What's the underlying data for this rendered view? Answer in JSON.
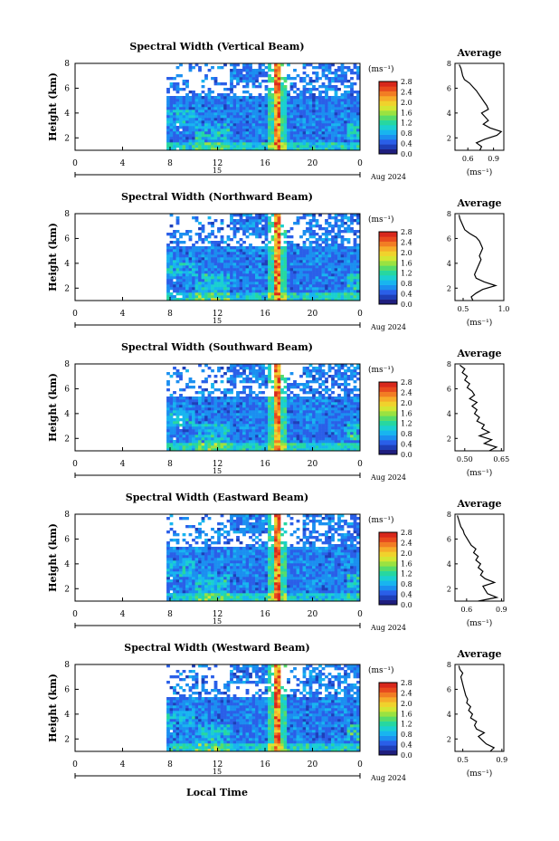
{
  "figure": {
    "xlabel": "Local Time",
    "date_day": "15",
    "date_label": "Aug 2024",
    "unit": "(ms⁻¹)",
    "avg_title": "Average",
    "avg_xlabel": "(ms⁻¹)"
  },
  "colorbar": {
    "colors": [
      "#1f1e7e",
      "#1e3fb8",
      "#2a5fe8",
      "#1b8ff0",
      "#18b5ef",
      "#1bd0d0",
      "#27d7a0",
      "#57dc6a",
      "#9ae241",
      "#d4e632",
      "#f0d22c",
      "#f6ad2a",
      "#f27d24",
      "#e84a1e",
      "#d8281c"
    ],
    "ticks": [
      "0.0",
      "0.4",
      "0.8",
      "1.2",
      "1.6",
      "2.0",
      "2.4",
      "2.8"
    ]
  },
  "chart_data": [
    {
      "type": "heatmap",
      "title": "Spectral Width (Vertical Beam)",
      "xlabel": "Local Time",
      "ylabel": "Height (km)",
      "xlim": [
        0,
        24
      ],
      "ylim": [
        1,
        8
      ],
      "xticks": [
        "0",
        "4",
        "8",
        "12",
        "16",
        "20",
        "0"
      ],
      "yticks": [
        "2",
        "4",
        "6",
        "8"
      ],
      "data_start_hour": 7.7,
      "colorbar_label": "(ms⁻¹)",
      "colorbar_range": [
        0.0,
        2.8
      ],
      "average": {
        "title": "Average",
        "xlabel": "(ms⁻¹)",
        "xticks": [
          "0.6",
          "0.9"
        ],
        "yticks": [
          "2",
          "4",
          "6",
          "8"
        ],
        "xlim": [
          0.45,
          1.02
        ],
        "heights": [
          1.0,
          1.3,
          1.6,
          1.9,
          2.2,
          2.5,
          2.8,
          3.1,
          3.4,
          3.7,
          4.0,
          4.3,
          4.6,
          4.9,
          5.2,
          5.5,
          5.8,
          6.1,
          6.4,
          6.7,
          7.0,
          7.3,
          7.6,
          7.9
        ],
        "values": [
          0.74,
          0.76,
          0.7,
          0.8,
          0.94,
          0.99,
          0.86,
          0.78,
          0.84,
          0.8,
          0.76,
          0.84,
          0.82,
          0.79,
          0.76,
          0.73,
          0.7,
          0.66,
          0.62,
          0.56,
          0.54,
          0.53,
          0.52,
          0.5
        ]
      }
    },
    {
      "type": "heatmap",
      "title": "Spectral Width (Northward Beam)",
      "xlabel": "Local Time",
      "ylabel": "Height (km)",
      "xlim": [
        0,
        24
      ],
      "ylim": [
        1,
        8
      ],
      "xticks": [
        "0",
        "4",
        "8",
        "12",
        "16",
        "20",
        "0"
      ],
      "yticks": [
        "2",
        "4",
        "6",
        "8"
      ],
      "data_start_hour": 7.7,
      "colorbar_label": "(ms⁻¹)",
      "colorbar_range": [
        0.0,
        2.8
      ],
      "average": {
        "title": "Average",
        "xlabel": "(ms⁻¹)",
        "xticks": [
          "0.5",
          "1.0"
        ],
        "yticks": [
          "2",
          "4",
          "6",
          "8"
        ],
        "xlim": [
          0.4,
          1.0
        ],
        "heights": [
          1.0,
          1.3,
          1.6,
          1.9,
          2.2,
          2.5,
          2.8,
          3.1,
          3.4,
          3.7,
          4.0,
          4.3,
          4.6,
          4.9,
          5.2,
          5.5,
          5.8,
          6.1,
          6.4,
          6.7,
          7.0,
          7.3,
          7.6,
          7.9
        ],
        "values": [
          0.62,
          0.6,
          0.66,
          0.74,
          0.9,
          0.76,
          0.66,
          0.64,
          0.66,
          0.68,
          0.7,
          0.72,
          0.7,
          0.72,
          0.74,
          0.72,
          0.7,
          0.66,
          0.58,
          0.52,
          0.5,
          0.48,
          0.46,
          0.45
        ]
      }
    },
    {
      "type": "heatmap",
      "title": "Spectral Width (Southward Beam)",
      "xlabel": "Local Time",
      "ylabel": "Height (km)",
      "xlim": [
        0,
        24
      ],
      "ylim": [
        1,
        8
      ],
      "xticks": [
        "0",
        "4",
        "8",
        "12",
        "16",
        "20",
        "0"
      ],
      "yticks": [
        "2",
        "4",
        "6",
        "8"
      ],
      "data_start_hour": 7.7,
      "colorbar_label": "(ms⁻¹)",
      "colorbar_range": [
        0.0,
        2.8
      ],
      "average": {
        "title": "Average",
        "xlabel": "(ms⁻¹)",
        "xticks": [
          "0.50",
          "0.65"
        ],
        "yticks": [
          "2",
          "4",
          "6",
          "8"
        ],
        "xlim": [
          0.46,
          0.66
        ],
        "heights": [
          1.0,
          1.3,
          1.6,
          1.9,
          2.2,
          2.5,
          2.8,
          3.1,
          3.4,
          3.7,
          4.0,
          4.3,
          4.6,
          4.9,
          5.2,
          5.5,
          5.8,
          6.1,
          6.4,
          6.7,
          7.0,
          7.3,
          7.6,
          7.9
        ],
        "values": [
          0.6,
          0.63,
          0.58,
          0.61,
          0.56,
          0.6,
          0.57,
          0.58,
          0.55,
          0.56,
          0.54,
          0.55,
          0.53,
          0.55,
          0.52,
          0.54,
          0.53,
          0.51,
          0.52,
          0.5,
          0.51,
          0.49,
          0.5,
          0.48
        ]
      }
    },
    {
      "type": "heatmap",
      "title": "Spectral Width (Eastward Beam)",
      "xlabel": "Local Time",
      "ylabel": "Height (km)",
      "xlim": [
        0,
        24
      ],
      "ylim": [
        1,
        8
      ],
      "xticks": [
        "0",
        "4",
        "8",
        "12",
        "16",
        "20",
        "0"
      ],
      "yticks": [
        "2",
        "4",
        "6",
        "8"
      ],
      "data_start_hour": 7.7,
      "colorbar_label": "(ms⁻¹)",
      "colorbar_range": [
        0.0,
        2.8
      ],
      "average": {
        "title": "Average",
        "xlabel": "(ms⁻¹)",
        "xticks": [
          "0.6",
          "0.9"
        ],
        "yticks": [
          "2",
          "4",
          "6",
          "8"
        ],
        "xlim": [
          0.5,
          0.92
        ],
        "heights": [
          1.0,
          1.3,
          1.6,
          1.9,
          2.2,
          2.5,
          2.8,
          3.1,
          3.4,
          3.7,
          4.0,
          4.3,
          4.6,
          4.9,
          5.2,
          5.5,
          5.8,
          6.1,
          6.4,
          6.7,
          7.0,
          7.3,
          7.6,
          7.9
        ],
        "values": [
          0.7,
          0.86,
          0.78,
          0.76,
          0.74,
          0.84,
          0.76,
          0.72,
          0.74,
          0.7,
          0.72,
          0.68,
          0.7,
          0.66,
          0.68,
          0.64,
          0.62,
          0.6,
          0.58,
          0.57,
          0.55,
          0.54,
          0.53,
          0.52
        ]
      }
    },
    {
      "type": "heatmap",
      "title": "Spectral Width (Westward Beam)",
      "xlabel": "Local Time",
      "ylabel": "Height (km)",
      "xlim": [
        0,
        24
      ],
      "ylim": [
        1,
        8
      ],
      "xticks": [
        "0",
        "4",
        "8",
        "12",
        "16",
        "20",
        "0"
      ],
      "yticks": [
        "2",
        "4",
        "6",
        "8"
      ],
      "data_start_hour": 7.7,
      "colorbar_label": "(ms⁻¹)",
      "colorbar_range": [
        0.0,
        2.8
      ],
      "average": {
        "title": "Average",
        "xlabel": "(ms⁻¹)",
        "xticks": [
          "0.5",
          "0.9"
        ],
        "yticks": [
          "2",
          "4",
          "6",
          "8"
        ],
        "xlim": [
          0.42,
          0.92
        ],
        "heights": [
          1.0,
          1.3,
          1.6,
          1.9,
          2.2,
          2.5,
          2.8,
          3.1,
          3.4,
          3.7,
          4.0,
          4.3,
          4.6,
          4.9,
          5.2,
          5.5,
          5.8,
          6.1,
          6.4,
          6.7,
          7.0,
          7.3,
          7.6,
          7.9
        ],
        "values": [
          0.78,
          0.82,
          0.74,
          0.7,
          0.66,
          0.72,
          0.64,
          0.62,
          0.64,
          0.58,
          0.6,
          0.56,
          0.58,
          0.54,
          0.55,
          0.53,
          0.52,
          0.51,
          0.5,
          0.49,
          0.48,
          0.5,
          0.47,
          0.46
        ]
      }
    }
  ]
}
